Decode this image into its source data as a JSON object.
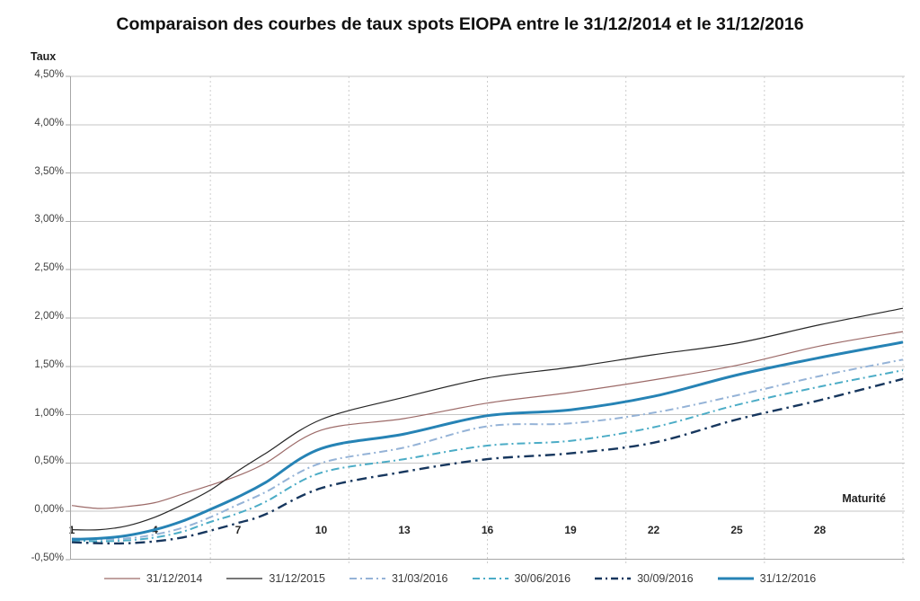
{
  "title": "Comparaison des courbes de taux spots EIOPA entre le 31/12/2014 et le 31/12/2016",
  "y_axis": {
    "label": "Taux",
    "ticks": [
      "4,50%",
      "4,00%",
      "3,50%",
      "3,00%",
      "2,50%",
      "2,00%",
      "1,50%",
      "1,00%",
      "0,50%",
      "0,00%",
      "-0,50%"
    ],
    "min": -0.5,
    "max": 4.5,
    "step": 0.5
  },
  "x_axis": {
    "label": "Maturité",
    "tick_values": [
      1,
      4,
      7,
      10,
      13,
      16,
      19,
      22,
      25,
      28
    ],
    "gridline_values": [
      6,
      11,
      16,
      21,
      26,
      31
    ],
    "min": 1,
    "max": 31
  },
  "chart_data": {
    "type": "line",
    "title": "Comparaison des courbes de taux spots EIOPA entre le 31/12/2014 et le 31/12/2016",
    "xlabel": "Maturité",
    "ylabel": "Taux",
    "unit": "percent",
    "xlim": [
      1,
      31
    ],
    "ylim": [
      -0.5,
      4.5
    ],
    "grid": true,
    "legend_position": "bottom",
    "x": [
      1,
      2,
      3,
      4,
      5,
      6,
      7,
      8,
      10,
      13,
      16,
      19,
      22,
      25,
      28,
      31
    ],
    "series": [
      {
        "name": "31/12/2014",
        "color": "#9C6A68",
        "style": "solid",
        "width": 1.2,
        "values": [
          0.06,
          0.03,
          0.05,
          0.09,
          0.18,
          0.27,
          0.37,
          0.5,
          0.84,
          0.96,
          1.12,
          1.23,
          1.36,
          1.51,
          1.71,
          1.86
        ]
      },
      {
        "name": "31/12/2015",
        "color": "#262626",
        "style": "solid",
        "width": 1.2,
        "values": [
          -0.19,
          -0.19,
          -0.15,
          -0.06,
          0.07,
          0.22,
          0.42,
          0.6,
          0.95,
          1.18,
          1.38,
          1.49,
          1.62,
          1.74,
          1.93,
          2.1
        ]
      },
      {
        "name": "31/03/2016",
        "color": "#95B3D7",
        "style": "dashdot",
        "width": 2,
        "values": [
          -0.28,
          -0.29,
          -0.28,
          -0.24,
          -0.17,
          -0.06,
          0.07,
          0.2,
          0.5,
          0.66,
          0.88,
          0.91,
          1.02,
          1.2,
          1.4,
          1.57
        ]
      },
      {
        "name": "30/06/2016",
        "color": "#4BACC6",
        "style": "dashdot",
        "width": 2,
        "values": [
          -0.3,
          -0.31,
          -0.3,
          -0.27,
          -0.21,
          -0.11,
          -0.02,
          0.1,
          0.4,
          0.54,
          0.68,
          0.73,
          0.87,
          1.1,
          1.29,
          1.46
        ]
      },
      {
        "name": "30/09/2016",
        "color": "#17375E",
        "style": "dashdot",
        "width": 2.4,
        "values": [
          -0.32,
          -0.33,
          -0.33,
          -0.31,
          -0.27,
          -0.2,
          -0.12,
          -0.03,
          0.24,
          0.41,
          0.54,
          0.6,
          0.71,
          0.95,
          1.15,
          1.37
        ]
      },
      {
        "name": "31/12/2016",
        "color": "#2683B5",
        "style": "solid",
        "width": 3,
        "values": [
          -0.29,
          -0.28,
          -0.25,
          -0.19,
          -0.1,
          0.02,
          0.15,
          0.3,
          0.65,
          0.8,
          0.99,
          1.05,
          1.19,
          1.41,
          1.59,
          1.75
        ]
      }
    ]
  },
  "colors": {
    "h_gridline": "#C6C6C6",
    "v_gridline": "#CDCDCD",
    "axis_line": "#A6A6A6",
    "tick_text": "#3F3F3F",
    "title_text": "#111111"
  }
}
